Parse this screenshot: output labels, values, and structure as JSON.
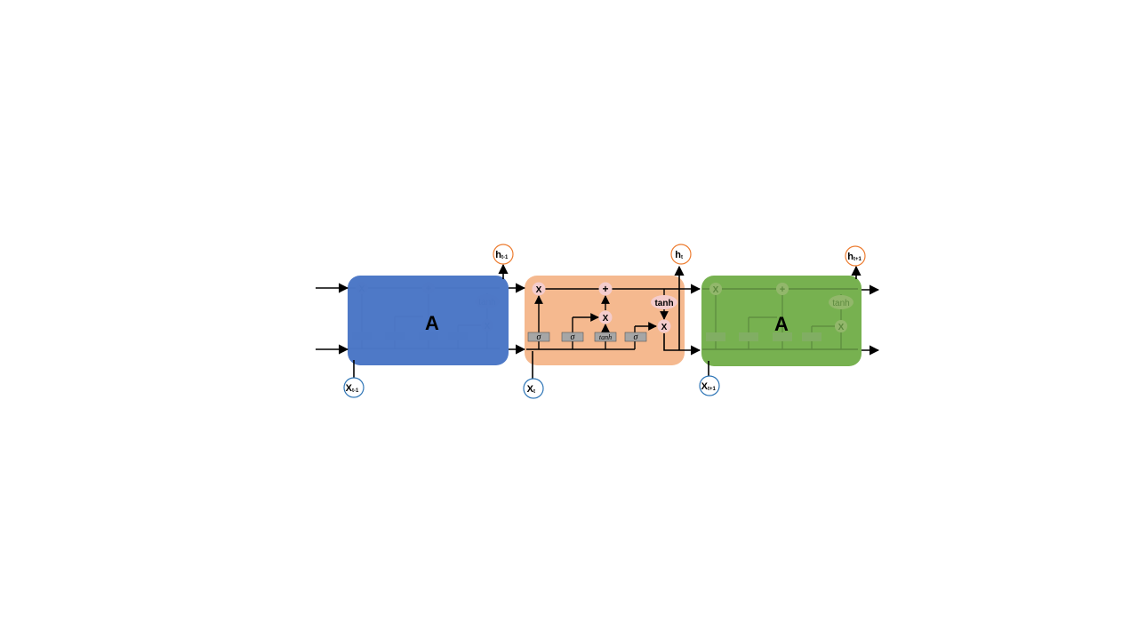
{
  "colors": {
    "cell_prev": "#4472c4",
    "cell_curr": "#f4b183",
    "cell_next": "#70ad47",
    "gate_box": "#a6a6a6",
    "op_circle": "#f4cccc",
    "input_ring": "#2e75b6",
    "output_ring": "#ed7d31"
  },
  "cells": {
    "prev": {
      "label": "A"
    },
    "next": {
      "label": "A"
    }
  },
  "gates": {
    "forget": "σ",
    "input": "σ",
    "candidate": "tanh",
    "output": "σ"
  },
  "ops": {
    "multiply": "X",
    "add": "+",
    "tanh": "tanh"
  },
  "inputs": {
    "prev": {
      "base": "X",
      "sub": "t-1"
    },
    "curr": {
      "base": "X",
      "sub": "t"
    },
    "next": {
      "base": "X",
      "sub": "t+1"
    }
  },
  "outputs": {
    "prev": {
      "base": "h",
      "sub": "t-1"
    },
    "curr": {
      "base": "h",
      "sub": "t"
    },
    "next": {
      "base": "h",
      "sub": "t+1"
    }
  }
}
